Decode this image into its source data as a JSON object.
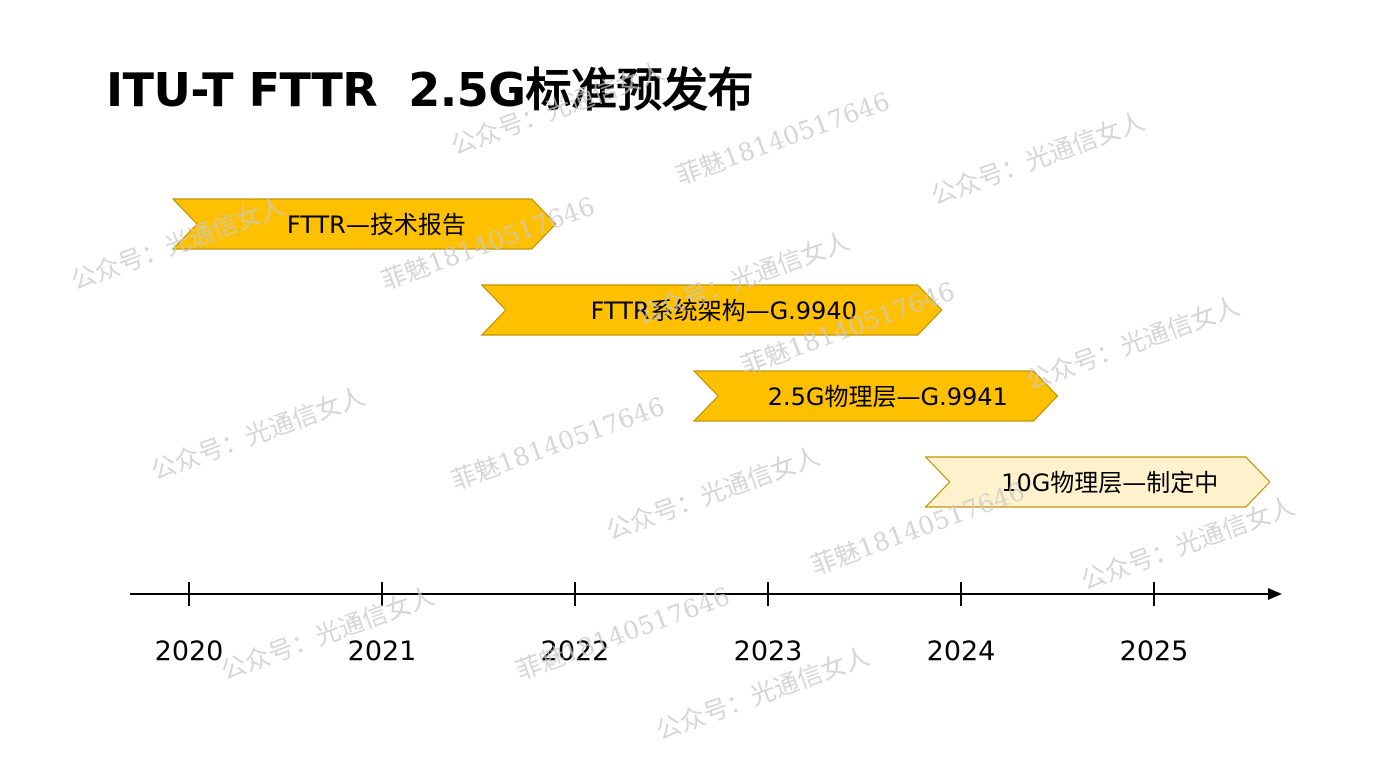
{
  "title": "ITU-T FTTR  2.5G标准预发布",
  "timeline": {
    "years": [
      "2020",
      "2021",
      "2022",
      "2023",
      "2024",
      "2025"
    ]
  },
  "phases": [
    {
      "label": "FTTR—技术报告",
      "start_year": 2020.0,
      "end_year": 2021.9,
      "status": "released",
      "fill": "#FFC000"
    },
    {
      "label": "FTTR系统架构—G.9940",
      "start_year": 2021.6,
      "end_year": 2023.9,
      "status": "released",
      "fill": "#FFC000"
    },
    {
      "label": "2.5G物理层—G.9941",
      "start_year": 2022.7,
      "end_year": 2024.5,
      "status": "released",
      "fill": "#FFC000"
    },
    {
      "label": "10G物理层—制定中",
      "start_year": 2023.9,
      "end_year": 2025.6,
      "status": "in-progress",
      "fill": "#FFF2CC"
    }
  ],
  "colors": {
    "axis": "#000000",
    "phase_border": "#BF9000",
    "watermark": "#c8c8c8"
  },
  "watermarks": {
    "account": "公众号：光通信女人",
    "author": "菲魅18140517646"
  }
}
